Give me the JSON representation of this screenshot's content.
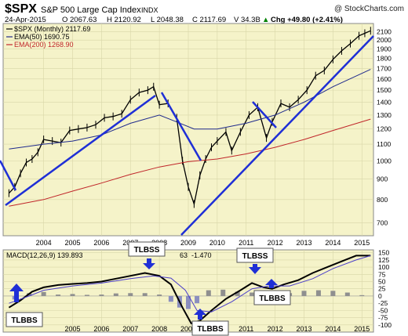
{
  "header": {
    "symbol": "$SPX",
    "name": "S&P 500 Large Cap Index",
    "exchange": "INDX",
    "watermark": "@ StockCharts.com",
    "date": "24-Apr-2015",
    "open": "O 2067.63",
    "high": "H 2120.92",
    "low": "L 2048.38",
    "close": "C 2117.69",
    "volume": "V 34.3B",
    "change": "Chg +49.80 (+2.41%)",
    "change_arrow": "▲"
  },
  "legend": {
    "price": "$SPX (Monthly) 2117.69",
    "ema50": "EMA(50) 1690.75",
    "ema200": "EMA(200) 1268.90"
  },
  "macd_legend": {
    "label": "MACD(12,26,9) 139.893",
    "value2": "63",
    "value3": "-1.470"
  },
  "colors": {
    "panel_bg": "#f5f3c9",
    "grid": "#d8d6a8",
    "ema50": "#1f2a8c",
    "ema200": "#c0262a",
    "trendline": "#1f2fd6",
    "price": "#000000",
    "histogram": "#8f8f8f",
    "annotation_arrow": "#1f2fd6"
  },
  "annotations": {
    "tlbbs_1": "TLBBS",
    "tlbss_1": "TLBSS",
    "tlbbs_2": "TLBBS",
    "tlbss_2": "TLBSS",
    "tlbbs_3": "TLBBS"
  },
  "chart_data": [
    {
      "type": "line",
      "title": "$SPX S&P 500 Large Cap Index INDX",
      "scale": "log",
      "ylim": [
        650,
        2200
      ],
      "xlim": [
        2002.6,
        2015.4
      ],
      "grid": true,
      "legend_position": "top-left",
      "y_ticks": [
        700,
        800,
        900,
        1000,
        1100,
        1200,
        1300,
        1400,
        1500,
        1600,
        1700,
        1800,
        1900,
        2000,
        2100
      ],
      "x_ticks": [
        2004,
        2005,
        2006,
        2007,
        2008,
        2009,
        2010,
        2011,
        2012,
        2013,
        2014,
        2015
      ],
      "series": [
        {
          "name": "$SPX (Monthly)",
          "x": [
            2002.8,
            2003.0,
            2003.2,
            2003.4,
            2003.6,
            2003.8,
            2004.0,
            2004.3,
            2004.6,
            2004.9,
            2005.2,
            2005.5,
            2005.8,
            2006.1,
            2006.4,
            2006.7,
            2007.0,
            2007.3,
            2007.6,
            2007.8,
            2008.0,
            2008.3,
            2008.6,
            2008.8,
            2009.0,
            2009.2,
            2009.4,
            2009.6,
            2009.8,
            2010.0,
            2010.3,
            2010.5,
            2010.8,
            2011.1,
            2011.4,
            2011.7,
            2011.9,
            2012.2,
            2012.5,
            2012.8,
            2013.1,
            2013.4,
            2013.7,
            2014.0,
            2014.3,
            2014.6,
            2014.9,
            2015.1,
            2015.3
          ],
          "values": [
            830,
            860,
            930,
            990,
            1010,
            1050,
            1130,
            1120,
            1110,
            1190,
            1200,
            1210,
            1230,
            1280,
            1290,
            1310,
            1420,
            1480,
            1500,
            1530,
            1380,
            1390,
            1280,
            1000,
            860,
            780,
            920,
            1010,
            1080,
            1120,
            1180,
            1060,
            1180,
            1300,
            1360,
            1140,
            1250,
            1390,
            1360,
            1420,
            1500,
            1630,
            1680,
            1790,
            1880,
            1960,
            2050,
            2080,
            2110
          ]
        },
        {
          "name": "EMA(50)",
          "x": [
            2002.8,
            2004.0,
            2005.0,
            2006.0,
            2007.0,
            2008.0,
            2008.6,
            2009.2,
            2010.0,
            2011.0,
            2012.0,
            2013.0,
            2014.0,
            2015.3
          ],
          "values": [
            1070,
            1100,
            1120,
            1160,
            1240,
            1300,
            1250,
            1200,
            1200,
            1240,
            1300,
            1400,
            1530,
            1690
          ]
        },
        {
          "name": "EMA(200)",
          "x": [
            2002.8,
            2004.0,
            2005.0,
            2006.0,
            2007.0,
            2008.0,
            2009.0,
            2010.0,
            2011.0,
            2012.0,
            2013.0,
            2014.0,
            2015.3
          ],
          "values": [
            770,
            800,
            840,
            880,
            925,
            965,
            995,
            1010,
            1040,
            1080,
            1130,
            1190,
            1270
          ]
        }
      ]
    },
    {
      "type": "line",
      "title": "MACD(12,26,9)",
      "ylim": [
        -125,
        160
      ],
      "xlim": [
        2002.6,
        2015.4
      ],
      "grid": true,
      "y_ticks": [
        150,
        125,
        100,
        75,
        50,
        25,
        0,
        -25,
        -50,
        -75,
        -100
      ],
      "x_ticks": [
        2005,
        2006,
        2007,
        2008,
        2009,
        2010,
        2011,
        2012,
        2013,
        2014,
        2015
      ],
      "series": [
        {
          "name": "MACD",
          "x": [
            2002.8,
            2003.2,
            2003.6,
            2004.0,
            2004.5,
            2005.0,
            2005.5,
            2006.0,
            2006.5,
            2007.0,
            2007.5,
            2008.0,
            2008.4,
            2008.8,
            2009.1,
            2009.4,
            2009.8,
            2010.3,
            2010.8,
            2011.2,
            2011.6,
            2011.9,
            2012.3,
            2012.8,
            2013.3,
            2013.8,
            2014.3,
            2014.8,
            2015.3
          ],
          "values": [
            -40,
            -15,
            15,
            30,
            38,
            42,
            45,
            50,
            60,
            70,
            80,
            70,
            40,
            -40,
            -95,
            -85,
            -50,
            -10,
            20,
            45,
            30,
            25,
            40,
            55,
            80,
            100,
            120,
            140,
            140
          ]
        },
        {
          "name": "Signal",
          "x": [
            2002.8,
            2003.5,
            2004.0,
            2005.0,
            2006.0,
            2007.0,
            2007.8,
            2008.4,
            2008.9,
            2009.3,
            2009.8,
            2010.5,
            2011.2,
            2011.8,
            2012.5,
            2013.3,
            2014.0,
            2014.8,
            2015.3
          ],
          "values": [
            -25,
            0,
            20,
            35,
            45,
            60,
            70,
            62,
            20,
            -50,
            -55,
            -20,
            25,
            35,
            35,
            60,
            95,
            125,
            140
          ]
        },
        {
          "name": "Histogram",
          "x": [
            2003.0,
            2003.5,
            2004.0,
            2004.5,
            2005.0,
            2005.5,
            2006.0,
            2006.5,
            2007.0,
            2007.5,
            2008.0,
            2008.4,
            2008.7,
            2009.0,
            2009.3,
            2009.7,
            2010.2,
            2010.7,
            2011.2,
            2011.6,
            2012.0,
            2012.5,
            2013.0,
            2013.5,
            2014.0,
            2014.5,
            2015.0
          ],
          "values": [
            -12,
            10,
            14,
            5,
            7,
            4,
            5,
            9,
            10,
            10,
            5,
            -20,
            -40,
            -45,
            -25,
            20,
            22,
            15,
            12,
            -8,
            -10,
            10,
            18,
            20,
            18,
            12,
            3
          ]
        }
      ]
    }
  ]
}
